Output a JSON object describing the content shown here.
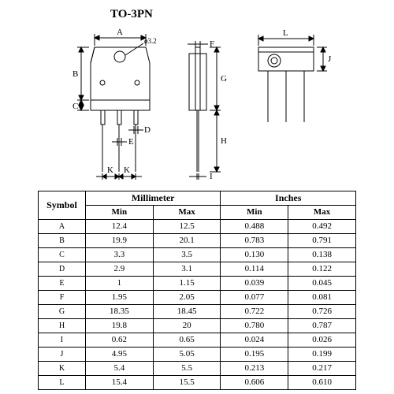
{
  "package_title": "TO-3PN",
  "hole_label": "ø3.2",
  "dim_labels": [
    "A",
    "B",
    "C",
    "D",
    "E",
    "F",
    "G",
    "H",
    "I",
    "J",
    "K",
    "L"
  ],
  "table": {
    "headers": {
      "symbol": "Symbol",
      "mm": "Millimeter",
      "in": "Inches",
      "min": "Min",
      "max": "Max"
    },
    "rows": [
      {
        "sym": "A",
        "mm_min": "12.4",
        "mm_max": "12.5",
        "in_min": "0.488",
        "in_max": "0.492"
      },
      {
        "sym": "B",
        "mm_min": "19.9",
        "mm_max": "20.1",
        "in_min": "0.783",
        "in_max": "0.791"
      },
      {
        "sym": "C",
        "mm_min": "3.3",
        "mm_max": "3.5",
        "in_min": "0.130",
        "in_max": "0.138"
      },
      {
        "sym": "D",
        "mm_min": "2.9",
        "mm_max": "3.1",
        "in_min": "0.114",
        "in_max": "0.122"
      },
      {
        "sym": "E",
        "mm_min": "1",
        "mm_max": "1.15",
        "in_min": "0.039",
        "in_max": "0.045"
      },
      {
        "sym": "F",
        "mm_min": "1.95",
        "mm_max": "2.05",
        "in_min": "0.077",
        "in_max": "0.081"
      },
      {
        "sym": "G",
        "mm_min": "18.35",
        "mm_max": "18.45",
        "in_min": "0.722",
        "in_max": "0.726"
      },
      {
        "sym": "H",
        "mm_min": "19.8",
        "mm_max": "20",
        "in_min": "0.780",
        "in_max": "0.787"
      },
      {
        "sym": "I",
        "mm_min": "0.62",
        "mm_max": "0.65",
        "in_min": "0.024",
        "in_max": "0.026"
      },
      {
        "sym": "J",
        "mm_min": "4.95",
        "mm_max": "5.05",
        "in_min": "0.195",
        "in_max": "0.199"
      },
      {
        "sym": "K",
        "mm_min": "5.4",
        "mm_max": "5.5",
        "in_min": "0.213",
        "in_max": "0.217"
      },
      {
        "sym": "L",
        "mm_min": "15.4",
        "mm_max": "15.5",
        "in_min": "0.606",
        "in_max": "0.610"
      }
    ]
  },
  "diagram": {
    "stroke": "#000000",
    "fill": "#ffffff",
    "font_size": 11
  }
}
